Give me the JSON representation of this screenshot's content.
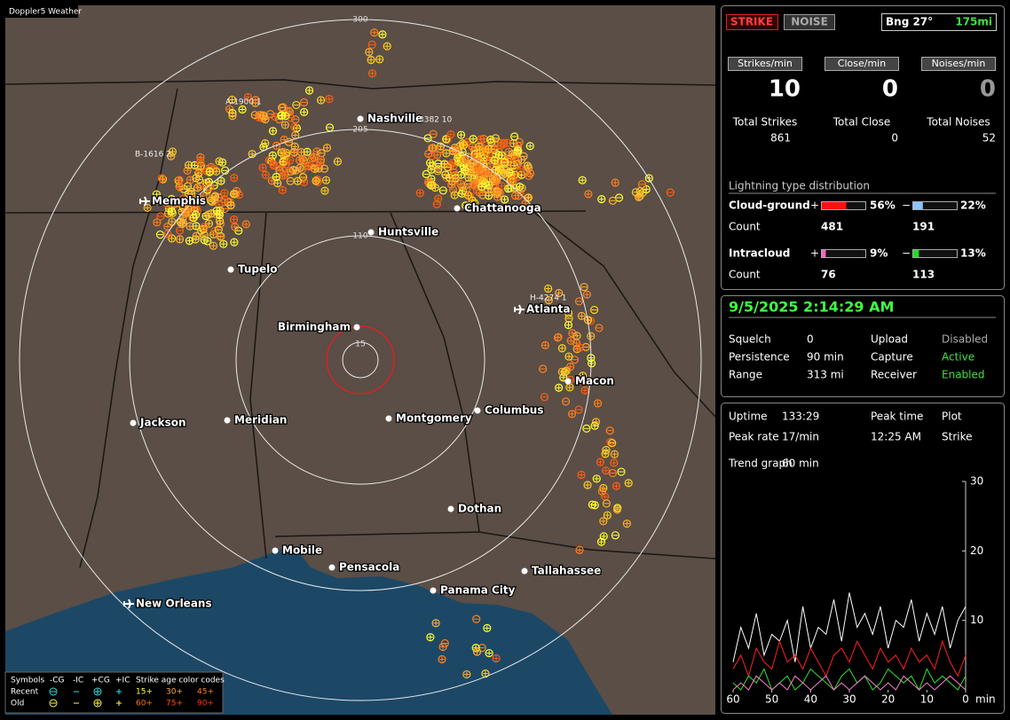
{
  "map": {
    "brand": "Doppler5 Weather",
    "ring_labels": [
      "300",
      "205",
      "110",
      "15"
    ],
    "cities": [
      "Nashville",
      "Memphis",
      "Chattanooga",
      "Huntsville",
      "Tupelo",
      "Atlanta",
      "Birmingham",
      "Macon",
      "Jackson",
      "Meridian",
      "Montgomery",
      "Columbus",
      "Dothan",
      "Mobile",
      "Pensacola",
      "Tallahassee",
      "Panama City",
      "New Orleans"
    ],
    "tags": [
      "A-1900  1",
      "B-1616  2",
      "3382  10",
      "H-4274  1"
    ],
    "legend": {
      "headers": [
        "Symbols",
        "-CG",
        "-IC",
        "+CG",
        "+IC"
      ],
      "age_title": "Strike age color codes",
      "rows": [
        {
          "label": "Recent",
          "ages": [
            "15+",
            "30+",
            "45+"
          ]
        },
        {
          "label": "Old",
          "ages": [
            "60+",
            "75+",
            "90+"
          ]
        }
      ]
    }
  },
  "counters": {
    "strike": "STRIKE",
    "noise": "NOISE",
    "bearing": "Bng 27°",
    "distance": "175mi",
    "rates": [
      {
        "label": "Strikes/min",
        "value": 10
      },
      {
        "label": "Close/min",
        "value": 0
      },
      {
        "label": "Noises/min",
        "value": 0
      }
    ],
    "totals": [
      {
        "label": "Total Strikes",
        "value": 861
      },
      {
        "label": "Total Close",
        "value": 0
      },
      {
        "label": "Total Noises",
        "value": 52
      }
    ]
  },
  "distribution": {
    "title": "Lightning type distribution",
    "count_label": "Count",
    "types": [
      {
        "name": "Cloud-ground",
        "plus": {
          "sign": "+",
          "percent": {
            "value": 56,
            "label": "56%"
          },
          "count": 481,
          "color": "#ff1010"
        },
        "minus": {
          "sign": "−",
          "percent": {
            "value": 22,
            "label": "22%"
          },
          "count": 191,
          "color": "#8cc4ff"
        }
      },
      {
        "name": "Intracloud",
        "plus": {
          "sign": "+",
          "percent": {
            "value": 9,
            "label": "9%"
          },
          "count": 76,
          "color": "#ff66c4"
        },
        "minus": {
          "sign": "−",
          "percent": {
            "value": 13,
            "label": "13%"
          },
          "count": 113,
          "color": "#22dd22"
        }
      }
    ]
  },
  "status": {
    "datetime": "9/5/2025 2:14:29 AM",
    "left": [
      {
        "label": "Squelch",
        "value": 0
      },
      {
        "label": "Persistence",
        "value": "90 min"
      },
      {
        "label": "Range",
        "value": "313 mi"
      }
    ],
    "right": [
      {
        "label": "Upload",
        "value": "Disabled"
      },
      {
        "label": "Capture",
        "value": "Active"
      },
      {
        "label": "Receiver",
        "value": "Enabled"
      }
    ]
  },
  "stats": {
    "items": [
      {
        "label": "Uptime",
        "value": "133:29"
      },
      {
        "label": "Peak time",
        "value": "12:25 AM"
      },
      {
        "label": "Plot",
        "value": "Strike"
      },
      {
        "label": "Peak rate",
        "value": "17/min"
      },
      {
        "label": "Trend graph",
        "value": "60 min"
      }
    ]
  },
  "trend": {
    "type": "line",
    "x": [
      60,
      58,
      56,
      54,
      52,
      50,
      48,
      46,
      44,
      42,
      40,
      38,
      36,
      34,
      32,
      30,
      28,
      26,
      24,
      22,
      20,
      18,
      16,
      14,
      12,
      10,
      8,
      6,
      4,
      2,
      0
    ],
    "xlim": [
      60,
      0
    ],
    "ylim": [
      0,
      30
    ],
    "xticks": [
      60,
      50,
      40,
      30,
      20,
      10,
      0
    ],
    "yticks": [
      10,
      20,
      30
    ],
    "x_unit": "min",
    "series": [
      {
        "color": "#ffffff",
        "values": [
          4,
          9,
          6,
          11,
          5,
          8,
          7,
          10,
          4,
          12,
          6,
          9,
          8,
          13,
          7,
          14,
          9,
          11,
          8,
          12,
          6,
          10,
          9,
          13,
          7,
          11,
          8,
          12,
          6,
          10,
          12
        ]
      },
      {
        "color": "#ff2020",
        "values": [
          3,
          5,
          2,
          6,
          4,
          3,
          7,
          4,
          5,
          3,
          6,
          4,
          2,
          5,
          6,
          4,
          7,
          5,
          3,
          6,
          4,
          5,
          3,
          6,
          4,
          5,
          3,
          7,
          4,
          2,
          5
        ]
      },
      {
        "color": "#30e030",
        "values": [
          1,
          0,
          2,
          1,
          3,
          0,
          1,
          2,
          0,
          1,
          3,
          2,
          1,
          0,
          2,
          3,
          1,
          2,
          0,
          1,
          3,
          2,
          1,
          2,
          0,
          3,
          1,
          2,
          1,
          0,
          2
        ]
      },
      {
        "color": "#ff80d0",
        "values": [
          0,
          1,
          0,
          2,
          1,
          0,
          1,
          0,
          2,
          1,
          0,
          1,
          2,
          0,
          1,
          0,
          1,
          2,
          1,
          0,
          1,
          0,
          2,
          1,
          0,
          1,
          0,
          1,
          2,
          1,
          0
        ]
      }
    ]
  }
}
